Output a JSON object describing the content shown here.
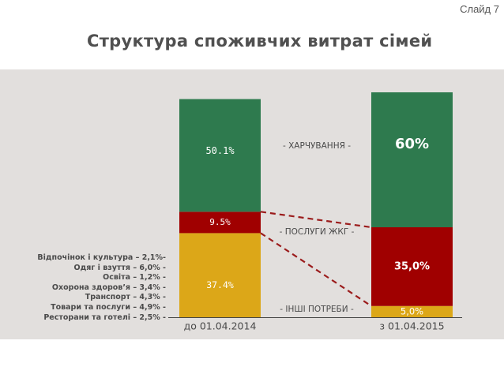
{
  "slide_label": "Слайд 7",
  "title": "Структура споживчих витрат сімей",
  "colors": {
    "food": "#2e7a4e",
    "utilities": "#a00000",
    "other": "#dca718",
    "connector": "#9b1c1c",
    "panel": "#e2dfdd"
  },
  "chart_data": {
    "type": "bar",
    "stacked": true,
    "title": "Структура споживчих витрат сімей",
    "categories": [
      "до 01.04.2014",
      "з 01.04.2015"
    ],
    "series": [
      {
        "name": "- ІНШІ ПОТРЕБИ -",
        "key": "other",
        "values": [
          37.4,
          5.0
        ],
        "labels": [
          "37.4%",
          "5,0%"
        ]
      },
      {
        "name": "- ПОСЛУГИ ЖКГ -",
        "key": "utilities",
        "values": [
          9.5,
          35.0
        ],
        "labels": [
          "9.5%",
          "35,0%"
        ]
      },
      {
        "name": "- ХАРЧУВАННЯ -",
        "key": "food",
        "values": [
          50.1,
          60.0
        ],
        "labels": [
          "50.1%",
          "60%"
        ]
      }
    ],
    "ylim": [
      0,
      100
    ],
    "other_breakdown": [
      "Відпочінок і культура – 2,1%-",
      "Одяг і взуття – 6,0% -",
      "Освіта – 1,2% -",
      "Охорона здоров’я – 3,4% -",
      "Транспорт – 4,3% -",
      "Товари та послуги – 4,9% -",
      "Ресторани та готелі – 2,5% -"
    ]
  }
}
